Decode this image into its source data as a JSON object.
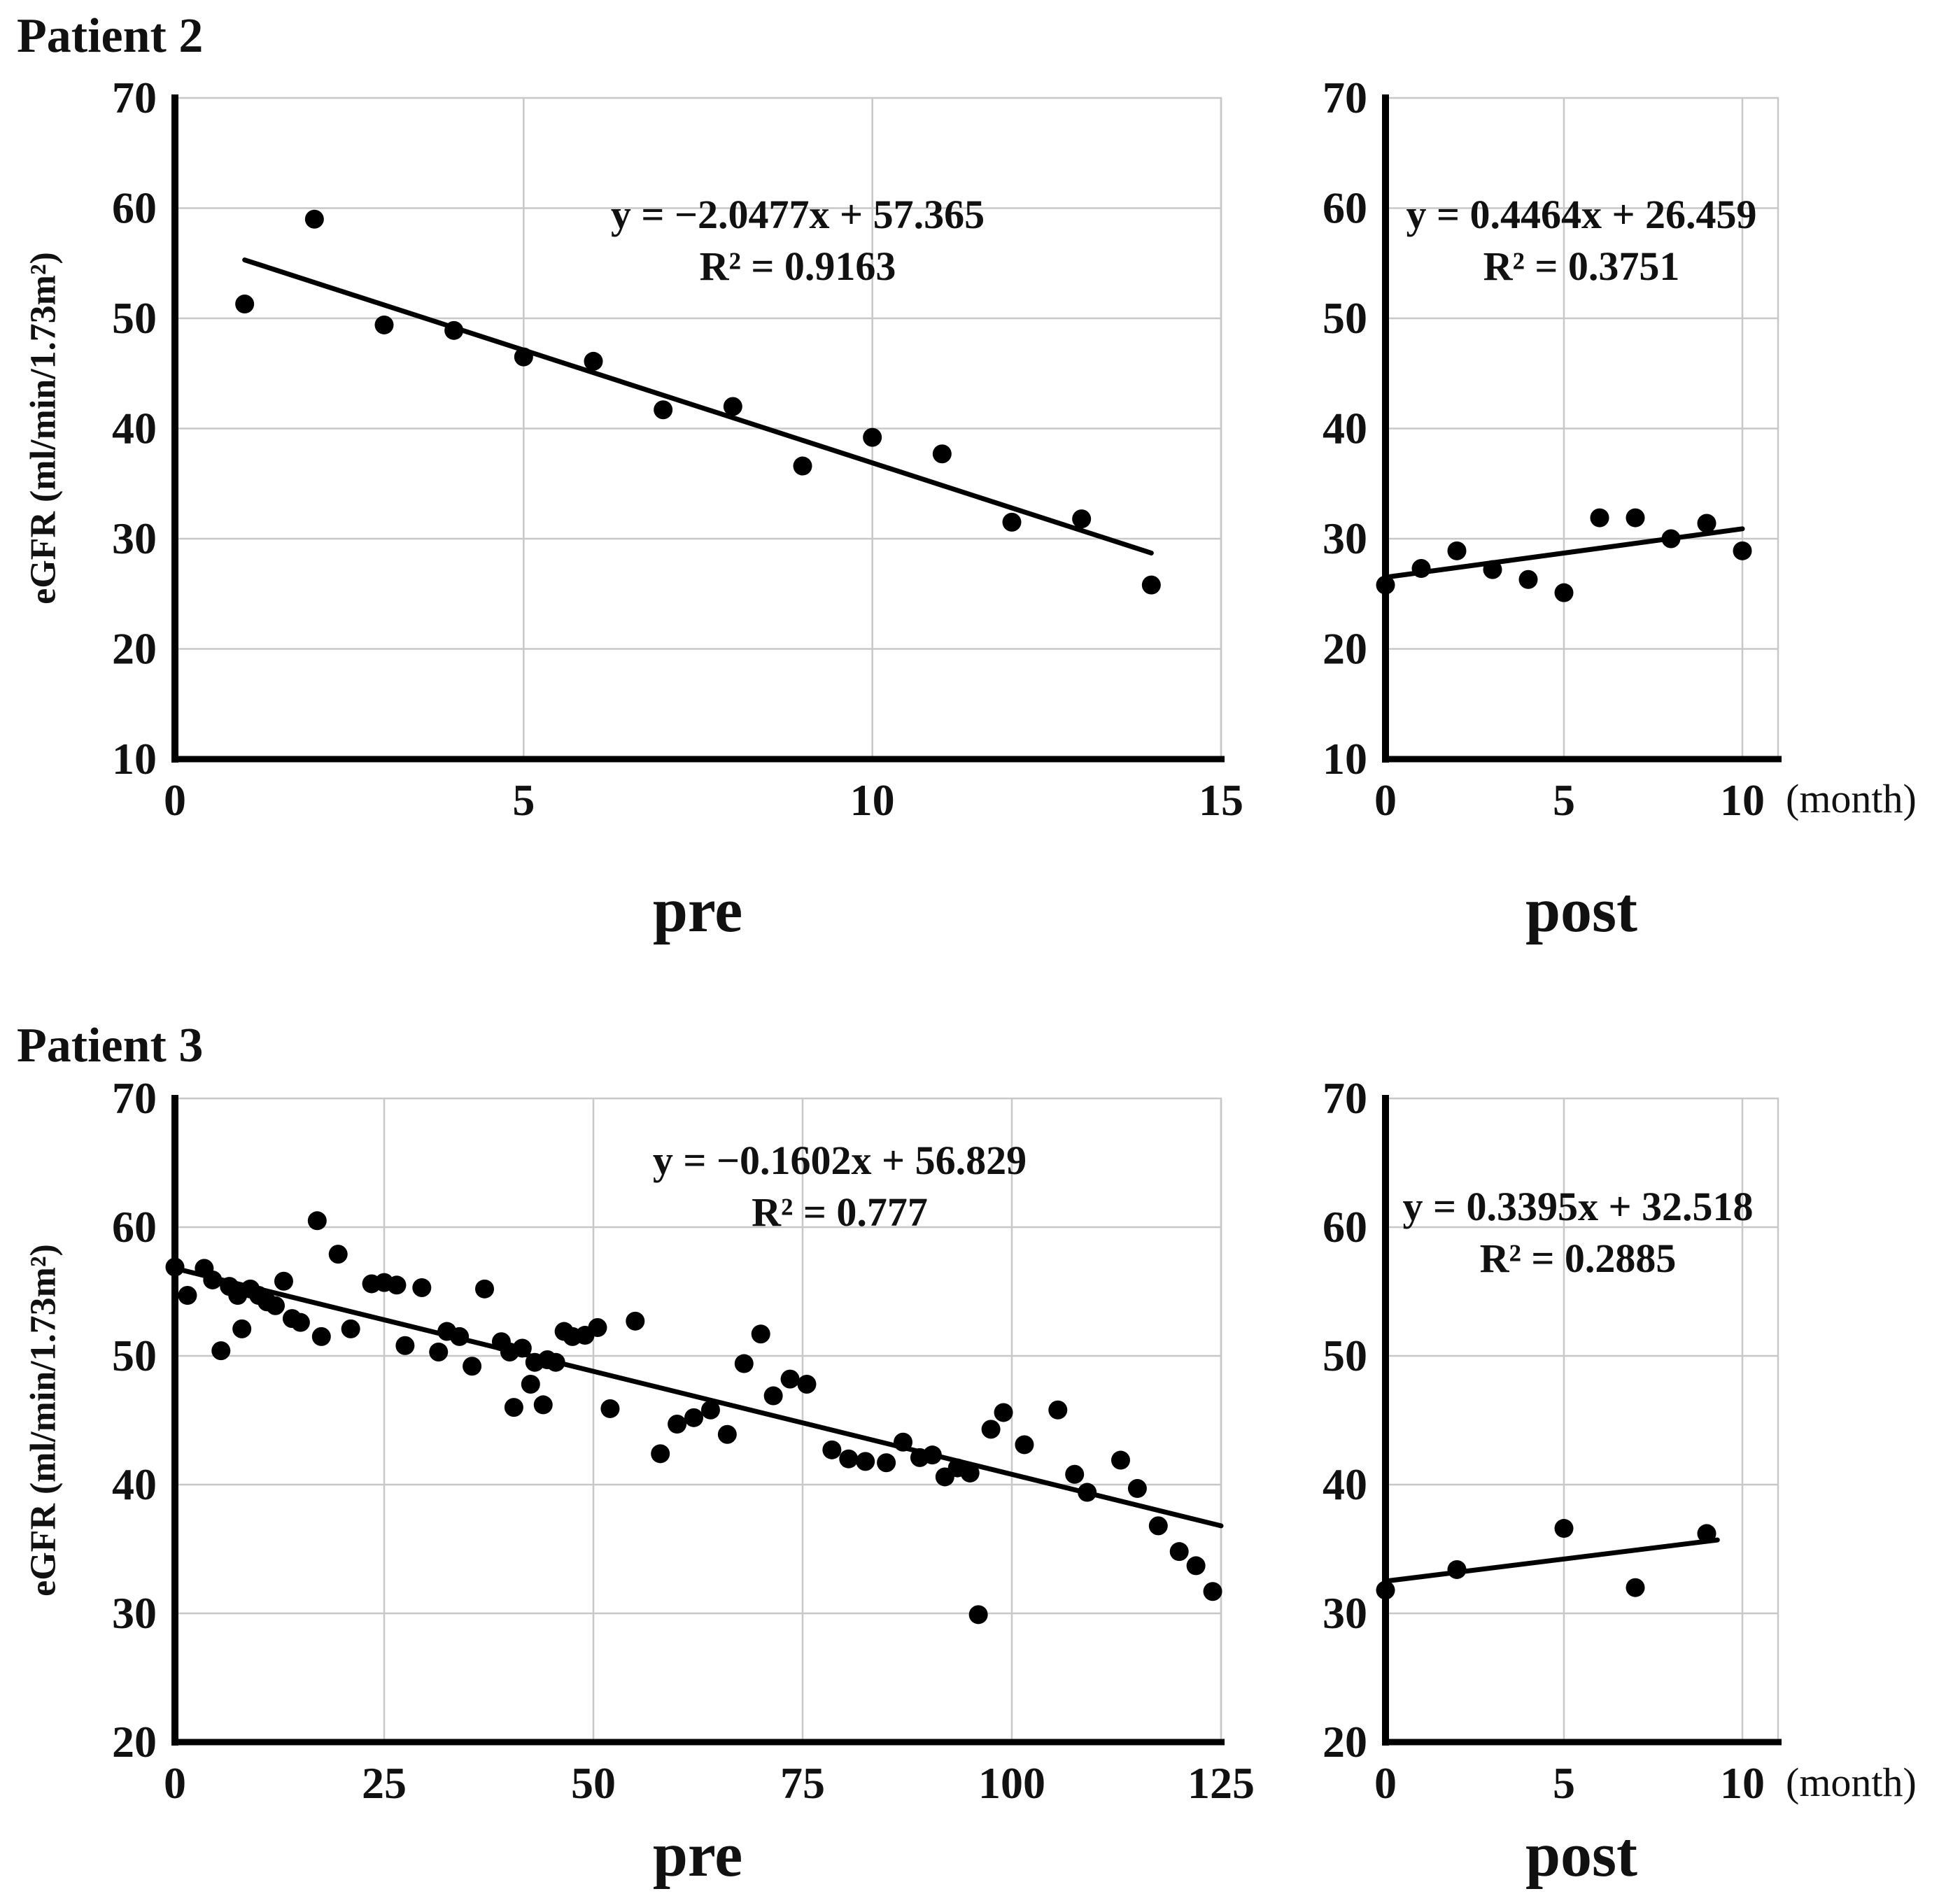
{
  "page": {
    "patient2_title": "Patient 2",
    "patient3_title": "Patient 3"
  },
  "chart_data": [
    {
      "id": "patient2-pre",
      "type": "scatter",
      "patient": "Patient 2",
      "xlabel": "pre",
      "ylabel": "eGFR (ml/min/1.73m²)",
      "equation": "y = −2.0477x + 57.365",
      "r_squared": "R² = 0.9163",
      "xlim": [
        0,
        15
      ],
      "ylim": [
        10,
        70
      ],
      "xticks": [
        0,
        5,
        10,
        15
      ],
      "yticks": [
        10,
        20,
        30,
        40,
        50,
        60,
        70
      ],
      "grid": true,
      "marker_color": "#000000",
      "points": [
        [
          1,
          51.3
        ],
        [
          2,
          59.0
        ],
        [
          3,
          49.4
        ],
        [
          4,
          48.9
        ],
        [
          5,
          46.5
        ],
        [
          6,
          46.1
        ],
        [
          7,
          41.7
        ],
        [
          8,
          42.0
        ],
        [
          9,
          36.6
        ],
        [
          10,
          39.2
        ],
        [
          11,
          37.7
        ],
        [
          12,
          31.5
        ],
        [
          13,
          31.8
        ],
        [
          14,
          25.8
        ]
      ],
      "trendline": {
        "x1": 1,
        "y1": 55.3,
        "x2": 14,
        "y2": 28.7
      }
    },
    {
      "id": "patient2-post",
      "type": "scatter",
      "patient": "Patient 2",
      "xlabel": "post",
      "ylabel": "eGFR (ml/min/1.73m²)",
      "x_unit": "(month)",
      "equation": "y = 0.4464x + 26.459",
      "r_squared": "R² = 0.3751",
      "xlim": [
        0,
        11
      ],
      "ylim": [
        10,
        70
      ],
      "xticks": [
        0,
        5,
        10
      ],
      "yticks": [
        10,
        20,
        30,
        40,
        50,
        60,
        70
      ],
      "grid": true,
      "marker_color": "#000000",
      "points": [
        [
          0,
          25.8
        ],
        [
          1,
          27.3
        ],
        [
          2,
          28.9
        ],
        [
          3,
          27.2
        ],
        [
          4,
          26.3
        ],
        [
          5,
          25.1
        ],
        [
          6,
          31.9
        ],
        [
          7,
          31.9
        ],
        [
          8,
          30.0
        ],
        [
          9,
          31.4
        ],
        [
          10,
          28.9
        ]
      ],
      "trendline": {
        "x1": 0,
        "y1": 26.5,
        "x2": 10,
        "y2": 30.9
      }
    },
    {
      "id": "patient3-pre",
      "type": "scatter",
      "patient": "Patient 3",
      "xlabel": "pre",
      "ylabel": "eGFR (ml/min/1.73m²)",
      "equation": "y = −0.1602x + 56.829",
      "r_squared": "R² = 0.777",
      "xlim": [
        0,
        125
      ],
      "ylim": [
        20,
        70
      ],
      "xticks": [
        0,
        25,
        50,
        75,
        100,
        125
      ],
      "yticks": [
        20,
        30,
        40,
        50,
        60,
        70
      ],
      "grid": true,
      "marker_color": "#000000",
      "points": [
        [
          0,
          56.9
        ],
        [
          1.5,
          54.7
        ],
        [
          3.5,
          56.8
        ],
        [
          4.5,
          55.9
        ],
        [
          5.5,
          50.4
        ],
        [
          6.5,
          55.4
        ],
        [
          7.5,
          54.7
        ],
        [
          8,
          52.1
        ],
        [
          9,
          55.2
        ],
        [
          10,
          54.7
        ],
        [
          11,
          54.2
        ],
        [
          12,
          53.9
        ],
        [
          13,
          55.8
        ],
        [
          14,
          52.9
        ],
        [
          15,
          52.6
        ],
        [
          17,
          60.5
        ],
        [
          17.5,
          51.5
        ],
        [
          19.5,
          57.9
        ],
        [
          21,
          52.1
        ],
        [
          23.5,
          55.6
        ],
        [
          25,
          55.7
        ],
        [
          26.5,
          55.5
        ],
        [
          27.5,
          50.8
        ],
        [
          29.5,
          55.3
        ],
        [
          31.5,
          50.3
        ],
        [
          32.5,
          51.9
        ],
        [
          34,
          51.5
        ],
        [
          35.5,
          49.2
        ],
        [
          37,
          55.2
        ],
        [
          39,
          51.1
        ],
        [
          40,
          50.3
        ],
        [
          40.5,
          46.0
        ],
        [
          41.5,
          50.6
        ],
        [
          42.5,
          47.8
        ],
        [
          43,
          49.5
        ],
        [
          44,
          46.2
        ],
        [
          44.5,
          49.7
        ],
        [
          45.5,
          49.5
        ],
        [
          46.5,
          51.9
        ],
        [
          47.5,
          51.5
        ],
        [
          49,
          51.6
        ],
        [
          50.5,
          52.2
        ],
        [
          52,
          45.9
        ],
        [
          55,
          52.7
        ],
        [
          58,
          42.4
        ],
        [
          60,
          44.7
        ],
        [
          62,
          45.2
        ],
        [
          64,
          45.8
        ],
        [
          66,
          43.9
        ],
        [
          68,
          49.4
        ],
        [
          70,
          51.7
        ],
        [
          71.5,
          46.9
        ],
        [
          73.5,
          48.2
        ],
        [
          75.5,
          47.8
        ],
        [
          78.5,
          42.7
        ],
        [
          80.5,
          42.0
        ],
        [
          82.5,
          41.8
        ],
        [
          85,
          41.7
        ],
        [
          87,
          43.3
        ],
        [
          89,
          42.1
        ],
        [
          90.5,
          42.3
        ],
        [
          92,
          40.6
        ],
        [
          93.5,
          41.3
        ],
        [
          95,
          40.9
        ],
        [
          96,
          29.9
        ],
        [
          97.5,
          44.3
        ],
        [
          99,
          45.6
        ],
        [
          101.5,
          43.1
        ],
        [
          105.5,
          45.8
        ],
        [
          107.5,
          40.8
        ],
        [
          109,
          39.4
        ],
        [
          113,
          41.9
        ],
        [
          115,
          39.7
        ],
        [
          117.5,
          36.8
        ],
        [
          120,
          34.8
        ],
        [
          122,
          33.7
        ],
        [
          124,
          31.7
        ]
      ],
      "trendline": {
        "x1": 0,
        "y1": 56.8,
        "x2": 125,
        "y2": 36.8
      }
    },
    {
      "id": "patient3-post",
      "type": "scatter",
      "patient": "Patient 3",
      "xlabel": "post",
      "ylabel": "eGFR (ml/min/1.73m²)",
      "x_unit": "(month)",
      "equation": "y = 0.3395x + 32.518",
      "r_squared": "R² = 0.2885",
      "xlim": [
        0,
        11
      ],
      "ylim": [
        20,
        70
      ],
      "xticks": [
        0,
        5,
        10
      ],
      "yticks": [
        20,
        30,
        40,
        50,
        60,
        70
      ],
      "grid": true,
      "marker_color": "#000000",
      "points": [
        [
          0,
          31.8
        ],
        [
          2,
          33.4
        ],
        [
          5,
          36.6
        ],
        [
          7,
          32.0
        ],
        [
          9,
          36.2
        ]
      ],
      "trendline": {
        "x1": 0,
        "y1": 32.5,
        "x2": 9.3,
        "y2": 35.7
      }
    }
  ]
}
